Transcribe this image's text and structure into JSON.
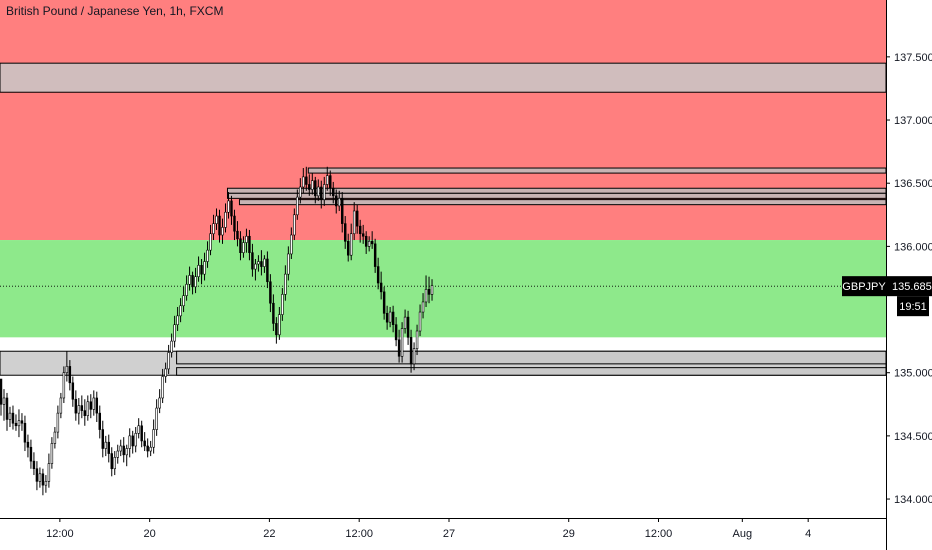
{
  "chart_data": {
    "type": "candlestick",
    "title": "British Pound / Japanese Yen, 1h, FXCM",
    "symbol": "GBPJPY",
    "last_price": "135.685",
    "countdown": "19:51",
    "y_axis": {
      "range": [
        133.85,
        137.95
      ],
      "ticks": [
        {
          "value": 137.5,
          "label": "137.500"
        },
        {
          "value": 137.0,
          "label": "137.000"
        },
        {
          "value": 136.5,
          "label": "136.500"
        },
        {
          "value": 136.0,
          "label": "136.000"
        },
        {
          "value": 135.0,
          "label": "135.000"
        },
        {
          "value": 134.5,
          "label": "134.500"
        },
        {
          "value": 134.0,
          "label": "134.000"
        }
      ]
    },
    "x_axis": {
      "range": [
        0,
        296
      ],
      "ticks": [
        {
          "value": 20,
          "label": "12:00"
        },
        {
          "value": 50,
          "label": "20"
        },
        {
          "value": 90,
          "label": "22"
        },
        {
          "value": 120,
          "label": "12:00"
        },
        {
          "value": 150,
          "label": "27"
        },
        {
          "value": 190,
          "label": "29"
        },
        {
          "value": 220,
          "label": "12:00"
        },
        {
          "value": 248,
          "label": "Aug"
        },
        {
          "value": 270,
          "label": "4"
        }
      ]
    },
    "zones": [
      {
        "name": "resistance-zone",
        "from": 136.05,
        "to": 137.95,
        "color": "#ff7f7f"
      },
      {
        "name": "support-zone",
        "from": 135.28,
        "to": 136.05,
        "color": "#8ee98b"
      }
    ],
    "boxes": [
      {
        "x_from": 0,
        "x_to": 296,
        "from": 137.22,
        "to": 137.45,
        "color": "#c8c8c8"
      },
      {
        "x_from": 0,
        "x_to": 296,
        "from": 134.98,
        "to": 135.17,
        "color": "#c8c8c8"
      },
      {
        "x_from": 59,
        "x_to": 296,
        "from": 135.07,
        "to": 135.17,
        "color": "#c8c8c8"
      },
      {
        "x_from": 59,
        "x_to": 296,
        "from": 134.98,
        "to": 135.04,
        "color": "#c8c8c8"
      },
      {
        "x_from": 103,
        "x_to": 296,
        "from": 136.58,
        "to": 136.62,
        "color": "#bdbdbd"
      },
      {
        "x_from": 76,
        "x_to": 296,
        "from": 136.42,
        "to": 136.46,
        "color": "#bdbdbd"
      },
      {
        "x_from": 76,
        "x_to": 296,
        "from": 136.38,
        "to": 136.42,
        "color": "#bdbdbd"
      },
      {
        "x_from": 80,
        "x_to": 296,
        "from": 136.33,
        "to": 136.37,
        "color": "#bdbdbd"
      }
    ],
    "current_price_line": 135.685,
    "series": [
      {
        "values": [
          [
            134.95,
            134.95,
            134.66,
            134.75
          ],
          [
            134.75,
            134.87,
            134.62,
            134.8
          ],
          [
            134.8,
            134.84,
            134.54,
            134.63
          ],
          [
            134.63,
            134.73,
            134.57,
            134.68
          ],
          [
            134.68,
            134.74,
            134.55,
            134.6
          ],
          [
            134.6,
            134.67,
            134.54,
            134.58
          ],
          [
            134.58,
            134.71,
            134.49,
            134.62
          ],
          [
            134.62,
            134.68,
            134.54,
            134.6
          ],
          [
            134.6,
            134.66,
            134.38,
            134.45
          ],
          [
            134.45,
            134.51,
            134.33,
            134.41
          ],
          [
            134.41,
            134.47,
            134.24,
            134.3
          ],
          [
            134.3,
            134.37,
            134.19,
            134.24
          ],
          [
            134.24,
            134.3,
            134.07,
            134.14
          ],
          [
            134.14,
            134.25,
            134.09,
            134.2
          ],
          [
            134.2,
            134.24,
            134.03,
            134.11
          ],
          [
            134.11,
            134.19,
            134.05,
            134.14
          ],
          [
            134.14,
            134.36,
            134.09,
            134.28
          ],
          [
            134.28,
            134.49,
            134.24,
            134.44
          ],
          [
            134.44,
            134.57,
            134.4,
            134.53
          ],
          [
            134.53,
            134.74,
            134.48,
            134.68
          ],
          [
            134.68,
            134.84,
            134.64,
            134.8
          ],
          [
            134.8,
            135.05,
            134.76,
            135.0
          ],
          [
            135.0,
            135.17,
            134.93,
            135.05
          ],
          [
            135.05,
            135.1,
            134.86,
            134.92
          ],
          [
            134.92,
            134.97,
            134.73,
            134.79
          ],
          [
            134.79,
            134.86,
            134.62,
            134.68
          ],
          [
            134.68,
            134.8,
            134.59,
            134.74
          ],
          [
            134.74,
            134.82,
            134.64,
            134.7
          ],
          [
            134.7,
            134.79,
            134.58,
            134.66
          ],
          [
            134.66,
            134.82,
            134.62,
            134.77
          ],
          [
            134.77,
            134.83,
            134.64,
            134.71
          ],
          [
            134.71,
            134.86,
            134.66,
            134.8
          ],
          [
            134.8,
            134.85,
            134.61,
            134.68
          ],
          [
            134.68,
            134.74,
            134.48,
            134.55
          ],
          [
            134.55,
            134.62,
            134.33,
            134.4
          ],
          [
            134.4,
            134.5,
            134.34,
            134.45
          ],
          [
            134.45,
            134.51,
            134.29,
            134.36
          ],
          [
            134.36,
            134.41,
            134.18,
            134.24
          ],
          [
            134.24,
            134.38,
            134.19,
            134.33
          ],
          [
            134.33,
            134.43,
            134.28,
            134.38
          ],
          [
            134.38,
            134.47,
            134.34,
            134.42
          ],
          [
            134.42,
            134.49,
            134.29,
            134.35
          ],
          [
            134.35,
            134.43,
            134.26,
            134.4
          ],
          [
            134.4,
            134.56,
            134.33,
            134.5
          ],
          [
            134.5,
            134.54,
            134.36,
            134.42
          ],
          [
            134.42,
            134.57,
            134.37,
            134.52
          ],
          [
            134.52,
            134.64,
            134.48,
            134.58
          ],
          [
            134.58,
            134.62,
            134.41,
            134.46
          ],
          [
            134.46,
            134.53,
            134.38,
            134.42
          ],
          [
            134.42,
            134.48,
            134.33,
            134.38
          ],
          [
            134.38,
            134.46,
            134.34,
            134.41
          ],
          [
            134.41,
            134.63,
            134.36,
            134.55
          ],
          [
            134.55,
            134.79,
            134.5,
            134.72
          ],
          [
            134.72,
            134.87,
            134.68,
            134.8
          ],
          [
            134.8,
            135.03,
            134.76,
            134.97
          ],
          [
            134.97,
            135.08,
            134.92,
            135.03
          ],
          [
            135.03,
            135.22,
            134.99,
            135.16
          ],
          [
            135.16,
            135.31,
            135.12,
            135.25
          ],
          [
            135.25,
            135.45,
            135.2,
            135.38
          ],
          [
            135.38,
            135.52,
            135.33,
            135.45
          ],
          [
            135.45,
            135.59,
            135.4,
            135.53
          ],
          [
            135.53,
            135.68,
            135.48,
            135.61
          ],
          [
            135.61,
            135.77,
            135.57,
            135.7
          ],
          [
            135.7,
            135.84,
            135.65,
            135.77
          ],
          [
            135.77,
            135.8,
            135.62,
            135.68
          ],
          [
            135.68,
            135.83,
            135.63,
            135.76
          ],
          [
            135.76,
            135.92,
            135.72,
            135.85
          ],
          [
            135.85,
            135.9,
            135.7,
            135.78
          ],
          [
            135.78,
            135.95,
            135.73,
            135.88
          ],
          [
            135.88,
            136.04,
            135.83,
            135.97
          ],
          [
            135.97,
            136.17,
            135.93,
            136.1
          ],
          [
            136.1,
            136.25,
            136.05,
            136.18
          ],
          [
            136.18,
            136.3,
            136.13,
            136.24
          ],
          [
            136.24,
            136.29,
            136.03,
            136.09
          ],
          [
            136.09,
            136.22,
            136.02,
            136.15
          ],
          [
            136.15,
            136.34,
            136.11,
            136.27
          ],
          [
            136.27,
            136.43,
            136.22,
            136.36
          ],
          [
            136.36,
            136.4,
            136.17,
            136.24
          ],
          [
            136.24,
            136.29,
            136.05,
            136.12
          ],
          [
            136.12,
            136.2,
            136.0,
            136.06
          ],
          [
            136.06,
            136.12,
            135.89,
            135.95
          ],
          [
            135.95,
            136.08,
            135.91,
            136.03
          ],
          [
            136.03,
            136.14,
            135.95,
            136.08
          ],
          [
            136.08,
            136.13,
            135.89,
            135.95
          ],
          [
            135.95,
            136.02,
            135.76,
            135.82
          ],
          [
            135.82,
            135.9,
            135.73,
            135.86
          ],
          [
            135.86,
            135.93,
            135.8,
            135.88
          ],
          [
            135.88,
            135.97,
            135.77,
            135.84
          ],
          [
            135.84,
            135.93,
            135.79,
            135.9
          ],
          [
            135.9,
            135.96,
            135.67,
            135.72
          ],
          [
            135.72,
            135.78,
            135.48,
            135.55
          ],
          [
            135.55,
            135.62,
            135.33,
            135.39
          ],
          [
            135.39,
            135.44,
            135.23,
            135.3
          ],
          [
            135.3,
            135.52,
            135.26,
            135.46
          ],
          [
            135.46,
            135.67,
            135.41,
            135.62
          ],
          [
            135.62,
            135.85,
            135.57,
            135.78
          ],
          [
            135.78,
            136.0,
            135.73,
            135.94
          ],
          [
            135.94,
            136.15,
            135.9,
            136.09
          ],
          [
            136.09,
            136.3,
            136.05,
            136.25
          ],
          [
            136.25,
            136.45,
            136.21,
            136.39
          ],
          [
            136.39,
            136.54,
            136.34,
            136.47
          ],
          [
            136.47,
            136.62,
            136.42,
            136.55
          ],
          [
            136.55,
            136.63,
            136.44,
            136.49
          ],
          [
            136.49,
            136.57,
            136.4,
            136.45
          ],
          [
            136.45,
            136.58,
            136.41,
            136.52
          ],
          [
            136.52,
            136.55,
            136.34,
            136.4
          ],
          [
            136.4,
            136.53,
            136.36,
            136.47
          ],
          [
            136.47,
            136.52,
            136.3,
            136.37
          ],
          [
            136.37,
            136.55,
            136.32,
            136.49
          ],
          [
            136.49,
            136.63,
            136.44,
            136.56
          ],
          [
            136.56,
            136.6,
            136.4,
            136.46
          ],
          [
            136.46,
            136.51,
            136.34,
            136.4
          ],
          [
            136.4,
            136.45,
            136.26,
            136.32
          ],
          [
            136.32,
            136.44,
            136.28,
            136.38
          ],
          [
            136.38,
            136.43,
            136.11,
            136.18
          ],
          [
            136.18,
            136.24,
            135.98,
            136.04
          ],
          [
            136.04,
            136.1,
            135.88,
            135.93
          ],
          [
            135.93,
            136.18,
            135.89,
            136.1
          ],
          [
            136.1,
            136.35,
            136.05,
            136.28
          ],
          [
            136.28,
            136.33,
            136.1,
            136.16
          ],
          [
            136.16,
            136.21,
            136.03,
            136.1
          ],
          [
            136.1,
            136.17,
            136.02,
            136.08
          ],
          [
            136.08,
            136.12,
            135.94,
            136.0
          ],
          [
            136.0,
            136.08,
            135.96,
            136.04
          ],
          [
            136.04,
            136.12,
            135.98,
            136.02
          ],
          [
            136.02,
            136.06,
            135.79,
            135.84
          ],
          [
            135.84,
            135.91,
            135.66,
            135.71
          ],
          [
            135.71,
            135.8,
            135.58,
            135.64
          ],
          [
            135.64,
            135.68,
            135.42,
            135.47
          ],
          [
            135.47,
            135.53,
            135.34,
            135.4
          ],
          [
            135.4,
            135.52,
            135.36,
            135.48
          ],
          [
            135.48,
            135.53,
            135.32,
            135.38
          ],
          [
            135.38,
            135.44,
            135.21,
            135.26
          ],
          [
            135.26,
            135.34,
            135.08,
            135.13
          ],
          [
            135.13,
            135.4,
            135.08,
            135.35
          ],
          [
            135.35,
            135.5,
            135.31,
            135.44
          ],
          [
            135.44,
            135.49,
            135.22,
            135.28
          ],
          [
            135.28,
            135.34,
            135.0,
            135.07
          ],
          [
            135.07,
            135.24,
            135.02,
            135.19
          ],
          [
            135.19,
            135.38,
            135.14,
            135.33
          ],
          [
            135.33,
            135.54,
            135.29,
            135.48
          ],
          [
            135.48,
            135.63,
            135.43,
            135.56
          ],
          [
            135.56,
            135.77,
            135.52,
            135.66
          ],
          [
            135.66,
            135.76,
            135.55,
            135.62
          ],
          [
            135.62,
            135.74,
            135.57,
            135.69
          ]
        ]
      }
    ],
    "colors": {
      "up": "#ffffff",
      "down": "#000000",
      "wick": "#000000",
      "grid": "#eef0f3",
      "axis_text": "#131722",
      "tag_bg": "#000000"
    },
    "grid": false,
    "legend": "none"
  }
}
